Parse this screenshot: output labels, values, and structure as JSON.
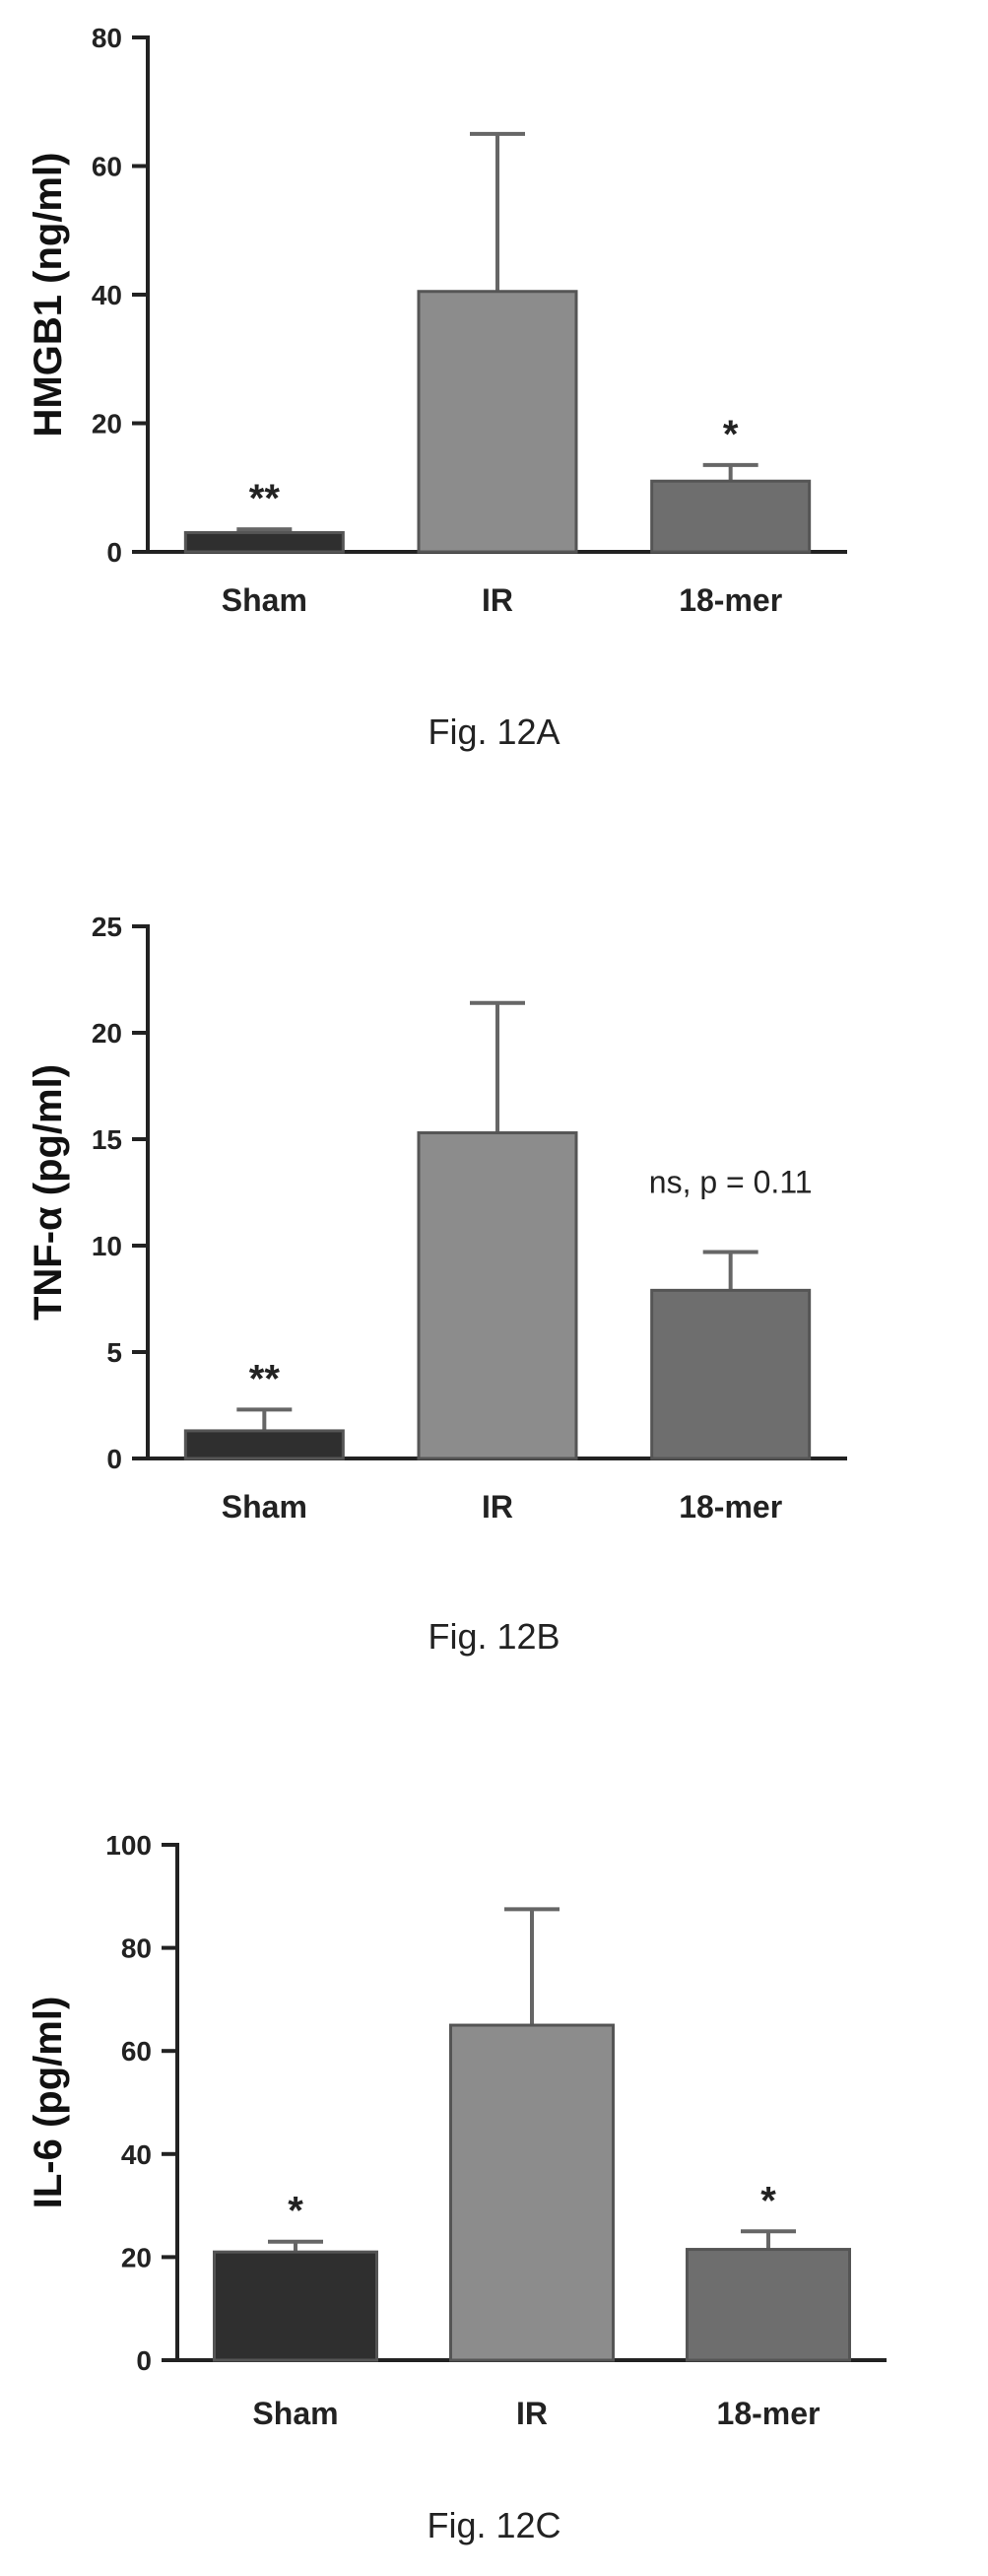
{
  "chart_data": [
    {
      "type": "bar",
      "categories": [
        "Sham",
        "IR",
        "18-mer"
      ],
      "values": [
        3,
        40.5,
        11
      ],
      "errors": [
        0.5,
        24.5,
        2.5
      ],
      "annotations": [
        "**",
        "",
        "*"
      ],
      "ylabel": "HMGB1 (ng/ml)",
      "ylim": [
        0,
        80
      ],
      "yticks": [
        "0",
        "20",
        "40",
        "60",
        "80"
      ],
      "colors": [
        "#2f2f2f",
        "#8c8c8c",
        "#6e6e6e"
      ],
      "caption": "Fig. 12A"
    },
    {
      "type": "bar",
      "categories": [
        "Sham",
        "IR",
        "18-mer"
      ],
      "values": [
        1.3,
        15.3,
        7.9
      ],
      "errors": [
        1.0,
        6.1,
        1.8
      ],
      "annotations": [
        "**",
        "",
        "ns, p = 0.11"
      ],
      "ylabel": "TNF-α (pg/ml)",
      "ylim": [
        0,
        25
      ],
      "yticks": [
        "0",
        "5",
        "10",
        "15",
        "20",
        "25"
      ],
      "colors": [
        "#2f2f2f",
        "#8c8c8c",
        "#6e6e6e"
      ],
      "caption": "Fig. 12B"
    },
    {
      "type": "bar",
      "categories": [
        "Sham",
        "IR",
        "18-mer"
      ],
      "values": [
        21,
        65,
        21.5
      ],
      "errors": [
        2,
        22.5,
        3.5
      ],
      "annotations": [
        "*",
        "",
        "*"
      ],
      "ylabel": "IL-6 (pg/ml)",
      "ylim": [
        0,
        100
      ],
      "yticks": [
        "0",
        "20",
        "40",
        "60",
        "80",
        "100"
      ],
      "colors": [
        "#2f2f2f",
        "#8c8c8c",
        "#6e6e6e"
      ],
      "caption": "Fig. 12C"
    }
  ]
}
